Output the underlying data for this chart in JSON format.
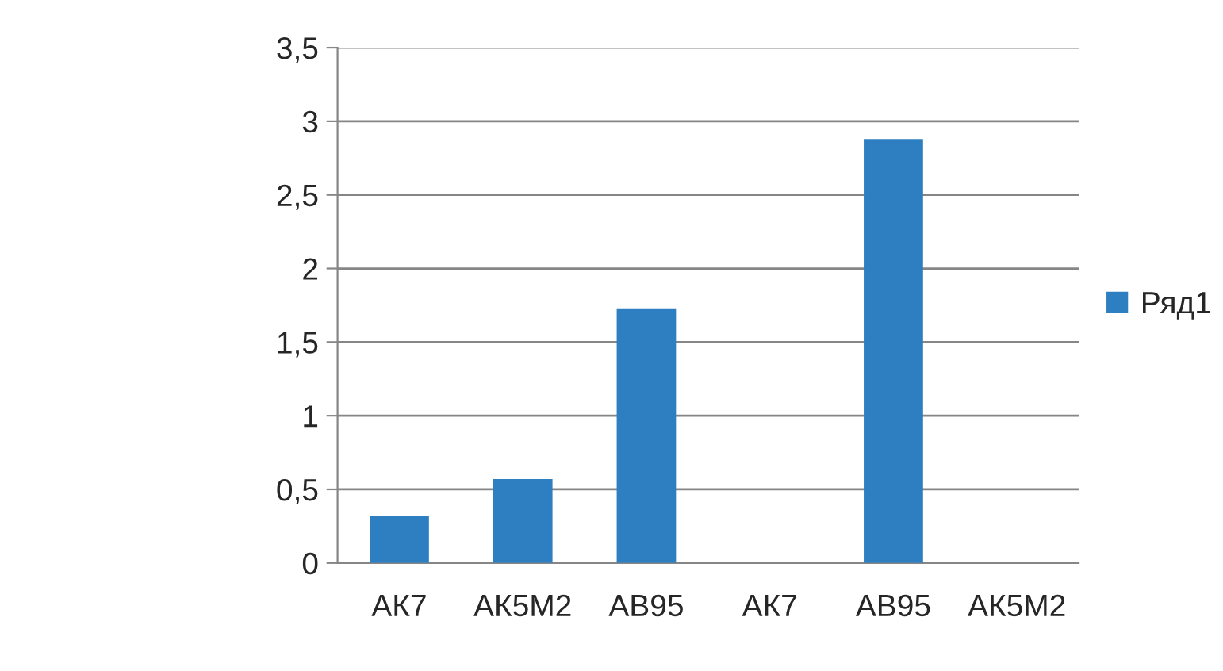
{
  "chart_data": {
    "type": "bar",
    "categories": [
      "АК7",
      "АК5М2",
      "АВ95",
      "АК7",
      "АВ95",
      "АК5М2"
    ],
    "series": [
      {
        "name": "Ряд1",
        "color": "#2e7fc1",
        "values": [
          0.32,
          0.57,
          1.73,
          null,
          2.88,
          null
        ]
      }
    ],
    "ylim": [
      0,
      3.5
    ],
    "yticks": [
      0,
      {
        "value": 0.5,
        "label": "0,5"
      },
      1,
      {
        "value": 1.5,
        "label": "1,5"
      },
      2,
      {
        "value": 2.5,
        "label": "2,5"
      },
      3,
      {
        "value": 3.5,
        "label": "3,5"
      }
    ],
    "grid": "y",
    "legend": "right"
  }
}
